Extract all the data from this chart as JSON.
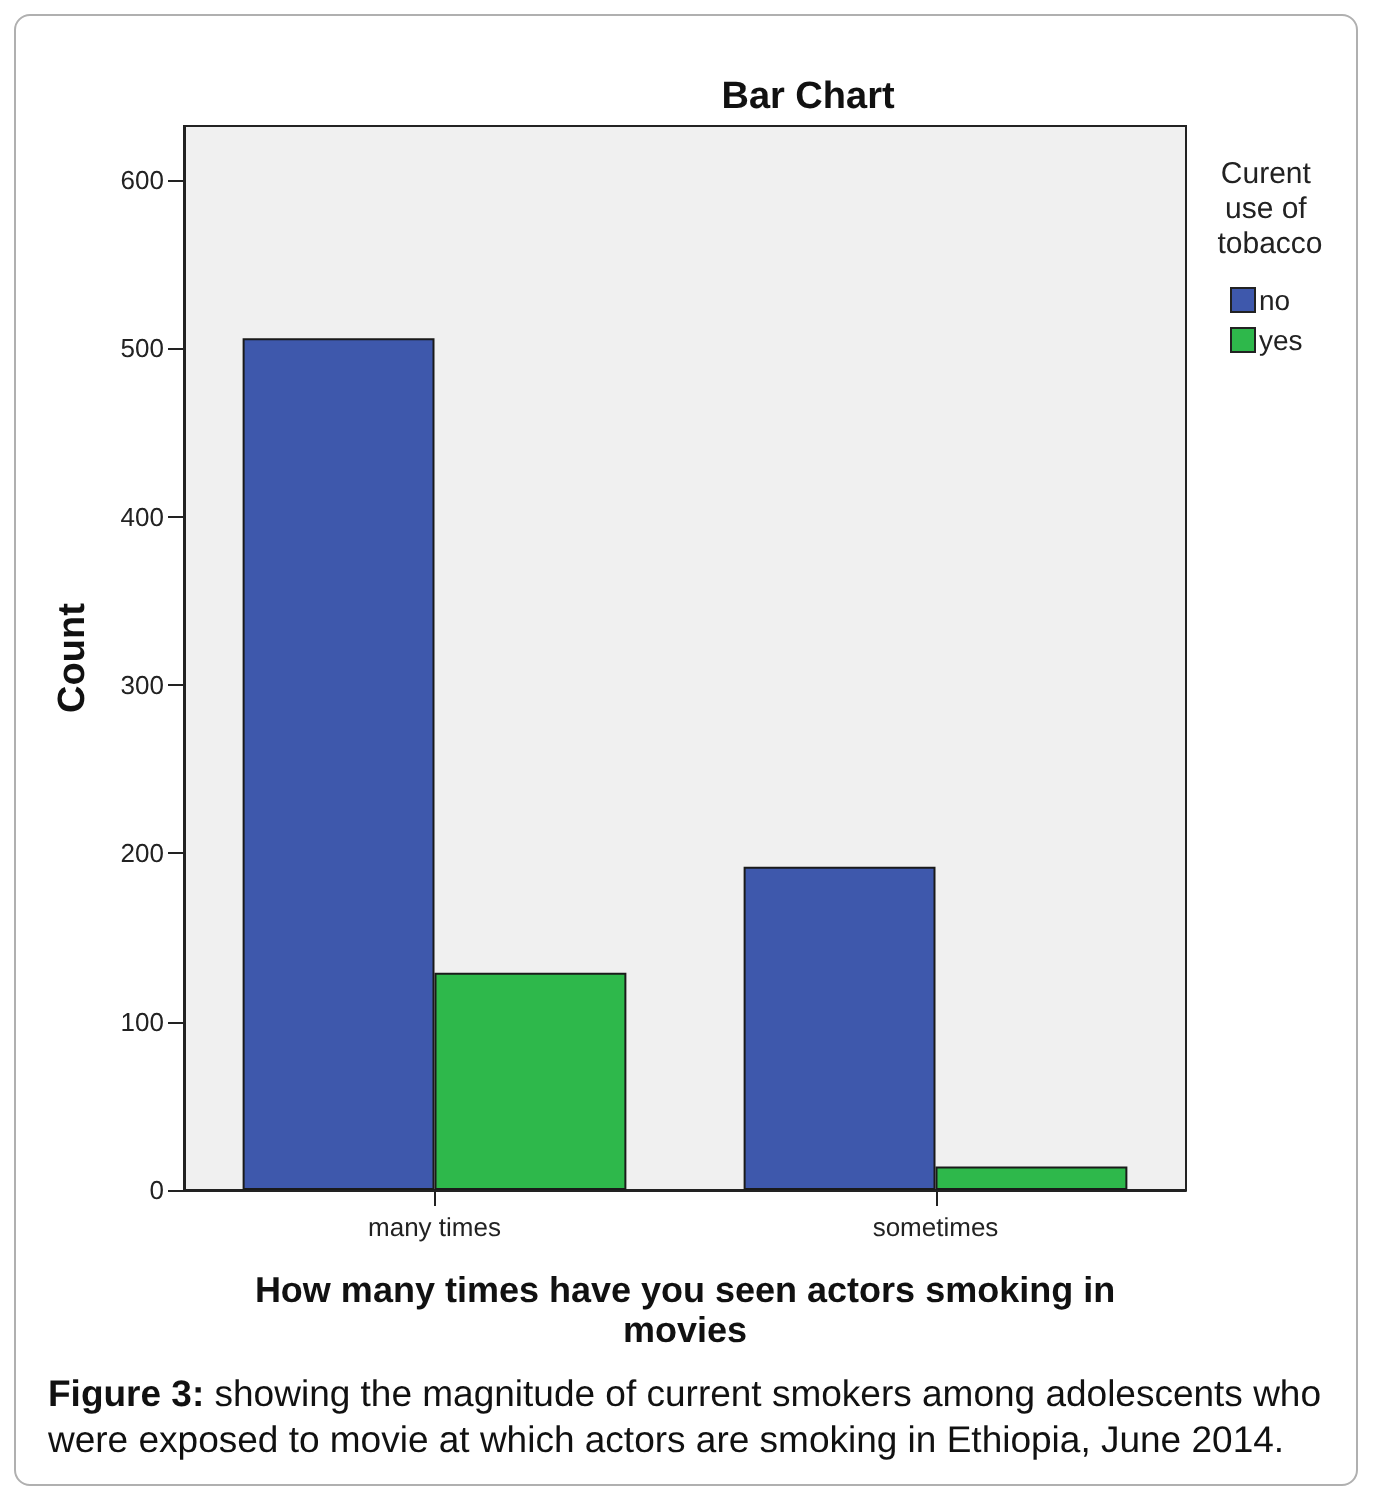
{
  "chart_data": {
    "type": "bar",
    "title": "Bar Chart",
    "xlabel": "How many times have you seen actors smoking in movies",
    "ylabel": "Count",
    "legend_title": "Curent use of tobacco",
    "annotations": [
      "Figure 3: showing the magnitude of current smokers among adolescents who were exposed to movie at which actors are smoking in Ethiopia, June 2014."
    ],
    "categories": [
      "many times",
      "sometimes"
    ],
    "series": [
      {
        "name": "no",
        "color": "#3e58ac",
        "values": [
          506,
          192
        ]
      },
      {
        "name": "yes",
        "color": "#2eb84b",
        "values": [
          129,
          14
        ]
      }
    ],
    "ylim": [
      0,
      632
    ],
    "yticks": [
      0,
      100,
      200,
      300,
      400,
      500,
      600
    ],
    "grid": false,
    "legend": "right"
  }
}
